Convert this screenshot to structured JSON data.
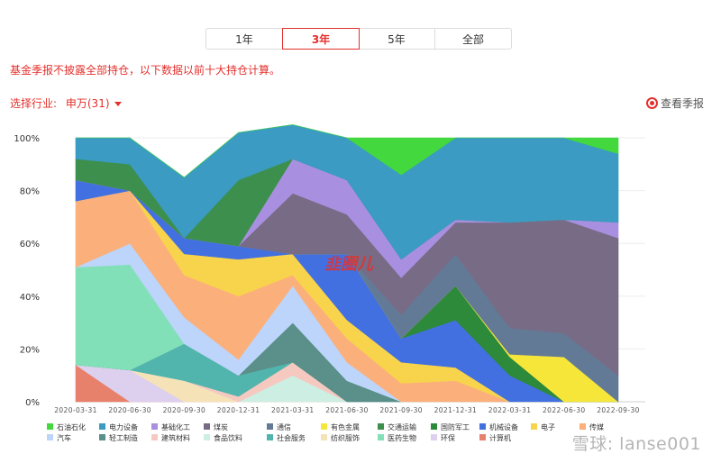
{
  "tabs": [
    {
      "label": "1年",
      "active": false
    },
    {
      "label": "3年",
      "active": true
    },
    {
      "label": "5年",
      "active": false
    },
    {
      "label": "全部",
      "active": false
    }
  ],
  "notice": "基金季报不披露全部持仓，以下数据以前十大持仓计算。",
  "industry": {
    "label": "选择行业:",
    "value": "申万(31)"
  },
  "report_link": "查看季报",
  "chart_watermark": "韭圈儿",
  "page_watermark": "雪球: lanse001",
  "chart_data": {
    "type": "area",
    "stacked": true,
    "x": [
      "2020-03-31",
      "2020-06-30",
      "2020-09-30",
      "2020-12-31",
      "2021-03-31",
      "2021-06-30",
      "2021-09-30",
      "2021-12-31",
      "2022-03-31",
      "2022-06-30",
      "2022-09-30"
    ],
    "ylim": [
      0,
      100
    ],
    "yticks": [
      "0%",
      "20%",
      "40%",
      "60%",
      "80%",
      "100%"
    ],
    "series": [
      {
        "name": "计算机",
        "color": "#e8816b",
        "values": [
          14,
          0,
          0,
          0,
          0,
          0,
          0,
          0,
          0,
          0,
          0
        ]
      },
      {
        "name": "环保",
        "color": "#ddd0ee",
        "values": [
          0,
          12,
          0,
          0,
          0,
          0,
          0,
          0,
          0,
          0,
          0
        ]
      },
      {
        "name": "纺织服饰",
        "color": "#f5e3b7",
        "values": [
          0,
          0,
          8,
          0,
          0,
          0,
          0,
          0,
          0,
          0,
          0
        ]
      },
      {
        "name": "食品饮料",
        "color": "#cdeee3",
        "values": [
          0,
          0,
          0,
          0,
          10,
          0,
          0,
          0,
          0,
          0,
          0
        ]
      },
      {
        "name": "建筑材料",
        "color": "#f6c9c0",
        "values": [
          0,
          0,
          0,
          2,
          5,
          0,
          0,
          0,
          0,
          0,
          0
        ]
      },
      {
        "name": "社会服务",
        "color": "#52b5ad",
        "values": [
          0,
          0,
          14,
          8,
          0,
          0,
          0,
          0,
          0,
          0,
          0
        ]
      },
      {
        "name": "轻工制造",
        "color": "#5a8f8a",
        "values": [
          0,
          0,
          0,
          0,
          15,
          8,
          0,
          0,
          0,
          0,
          0
        ]
      },
      {
        "name": "医药生物",
        "color": "#82e0b8",
        "values": [
          37,
          40,
          0,
          0,
          0,
          0,
          0,
          0,
          0,
          0,
          0
        ]
      },
      {
        "name": "汽车",
        "color": "#bdd4fb",
        "values": [
          0,
          8,
          10,
          6,
          14,
          7,
          0,
          0,
          0,
          0,
          0
        ]
      },
      {
        "name": "传媒",
        "color": "#fbb07b",
        "values": [
          25,
          20,
          16,
          24,
          4,
          9,
          7,
          8,
          0,
          0,
          0
        ]
      },
      {
        "name": "电子",
        "color": "#f8d34c",
        "values": [
          0,
          0,
          8,
          14,
          8,
          7,
          8,
          5,
          0,
          0,
          0
        ]
      },
      {
        "name": "机械设备",
        "color": "#4270e0",
        "values": [
          8,
          0,
          6,
          5,
          0,
          25,
          9,
          18,
          10,
          0,
          0
        ]
      },
      {
        "name": "国防军工",
        "color": "#2c8a3a",
        "values": [
          0,
          0,
          0,
          0,
          0,
          0,
          0,
          13,
          7,
          0,
          0
        ]
      },
      {
        "name": "有色金属",
        "color": "#f7e63a",
        "values": [
          0,
          0,
          0,
          0,
          0,
          0,
          0,
          0,
          1,
          17,
          0
        ]
      },
      {
        "name": "通信",
        "color": "#637a97",
        "values": [
          0,
          0,
          0,
          0,
          0,
          0,
          9,
          12,
          10,
          9,
          10
        ]
      },
      {
        "name": "煤炭",
        "color": "#786b85",
        "values": [
          0,
          0,
          0,
          0,
          23,
          15,
          14,
          12,
          40,
          43,
          52
        ]
      },
      {
        "name": "基础化工",
        "color": "#a98fe0",
        "values": [
          0,
          0,
          0,
          0,
          13,
          13,
          7,
          1,
          0,
          0,
          6
        ]
      },
      {
        "name": "交通运输",
        "color": "#3d8f4e",
        "values": [
          8,
          10,
          0,
          25,
          0,
          0,
          0,
          0,
          0,
          0,
          0
        ]
      },
      {
        "name": "电力设备",
        "color": "#3b9bc2",
        "values": [
          8,
          10,
          23,
          18,
          13,
          16,
          32,
          31,
          32,
          31,
          26
        ]
      },
      {
        "name": "石油石化",
        "color": "#43d83e",
        "values": [
          0,
          0,
          0,
          0,
          0,
          0,
          14,
          0,
          0,
          0,
          6
        ]
      }
    ],
    "legend": [
      {
        "name": "石油石化",
        "color": "#43d83e"
      },
      {
        "name": "电力设备",
        "color": "#3b9bc2"
      },
      {
        "name": "基础化工",
        "color": "#a98fe0"
      },
      {
        "name": "煤炭",
        "color": "#786b85"
      },
      {
        "name": "通信",
        "color": "#637a97"
      },
      {
        "name": "有色金属",
        "color": "#f7e63a"
      },
      {
        "name": "交通运输",
        "color": "#3d8f4e"
      },
      {
        "name": "国防军工",
        "color": "#2c8a3a"
      },
      {
        "name": "机械设备",
        "color": "#4270e0"
      },
      {
        "name": "电子",
        "color": "#f8d34c"
      },
      {
        "name": "传媒",
        "color": "#fbb07b"
      },
      {
        "name": "汽车",
        "color": "#bdd4fb"
      },
      {
        "name": "轻工制造",
        "color": "#5a8f8a"
      },
      {
        "name": "建筑材料",
        "color": "#f6c9c0"
      },
      {
        "name": "食品饮料",
        "color": "#cdeee3"
      },
      {
        "name": "社会服务",
        "color": "#52b5ad"
      },
      {
        "name": "纺织服饰",
        "color": "#f5e3b7"
      },
      {
        "name": "医药生物",
        "color": "#82e0b8"
      },
      {
        "name": "环保",
        "color": "#ddd0ee"
      },
      {
        "name": "计算机",
        "color": "#e8816b"
      }
    ],
    "legend_position": "bottom",
    "grid": true
  }
}
